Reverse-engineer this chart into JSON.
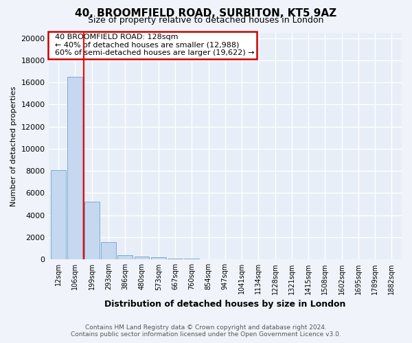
{
  "title1": "40, BROOMFIELD ROAD, SURBITON, KT5 9AZ",
  "title2": "Size of property relative to detached houses in London",
  "xlabel": "Distribution of detached houses by size in London",
  "ylabel": "Number of detached properties",
  "categories": [
    "12sqm",
    "106sqm",
    "199sqm",
    "293sqm",
    "386sqm",
    "480sqm",
    "573sqm",
    "667sqm",
    "760sqm",
    "854sqm",
    "947sqm",
    "1041sqm",
    "1134sqm",
    "1228sqm",
    "1321sqm",
    "1415sqm",
    "1508sqm",
    "1602sqm",
    "1695sqm",
    "1789sqm",
    "1882sqm"
  ],
  "values": [
    8050,
    16500,
    5250,
    1550,
    390,
    260,
    180,
    110,
    70,
    45,
    25,
    12,
    8,
    5,
    4,
    3,
    2,
    2,
    1,
    1,
    1
  ],
  "bar_color": "#c5d8ef",
  "bar_edge_color": "#7aacd4",
  "red_line_index": 1.5,
  "annotation_title": "40 BROOMFIELD ROAD: 128sqm",
  "annotation_line1": "← 40% of detached houses are smaller (12,988)",
  "annotation_line2": "60% of semi-detached houses are larger (19,622) →",
  "annotation_box_color": "#ffffff",
  "annotation_box_edge": "#cc0000",
  "ylim": [
    0,
    20500
  ],
  "yticks": [
    0,
    2000,
    4000,
    6000,
    8000,
    10000,
    12000,
    14000,
    16000,
    18000,
    20000
  ],
  "footer1": "Contains HM Land Registry data © Crown copyright and database right 2024.",
  "footer2": "Contains public sector information licensed under the Open Government Licence v3.0.",
  "fig_bg_color": "#f0f4fa",
  "plot_bg_color": "#e8eef7",
  "grid_color": "#ffffff",
  "title_fontsize": 11,
  "subtitle_fontsize": 9
}
